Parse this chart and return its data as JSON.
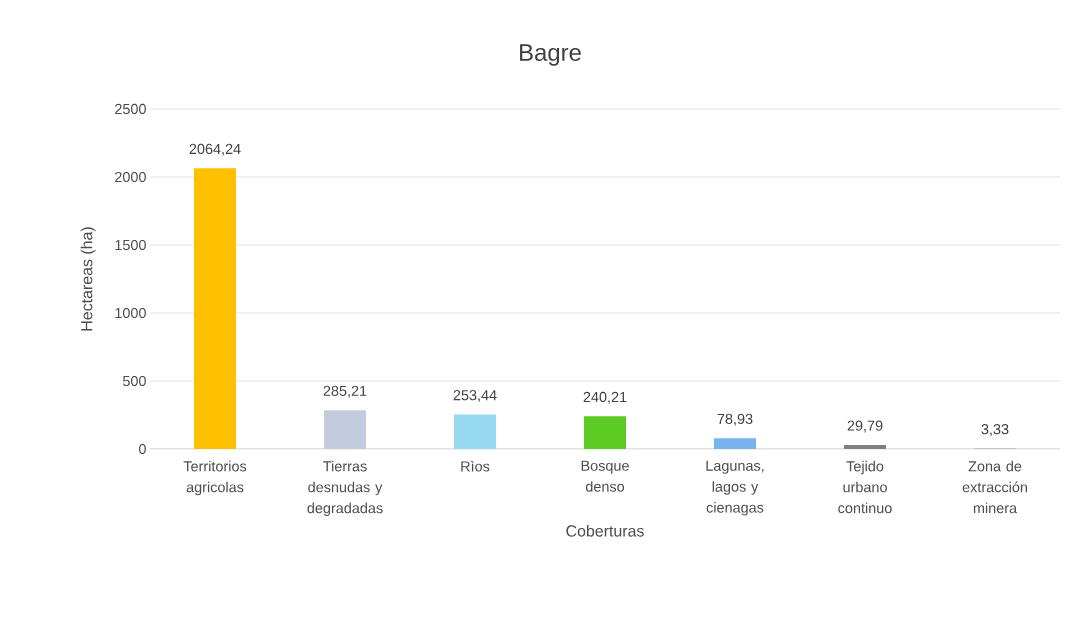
{
  "chart_data": {
    "type": "bar",
    "title": "Bagre",
    "xlabel": "Coberturas",
    "ylabel": "Hectareas (ha)",
    "categories": [
      "Territorios agricolas",
      "Tierras desnudas y degradadas",
      "Rìos",
      "Bosque denso",
      "Lagunas, lagos y cienagas",
      "Tejido urbano continuo",
      "Zona de extracción minera"
    ],
    "values": [
      2064.24,
      285.21,
      253.44,
      240.21,
      78.93,
      29.79,
      3.33
    ],
    "value_labels": [
      "2064,24",
      "285,21",
      "253,44",
      "240,21",
      "78,93",
      "29,79",
      "3,33"
    ],
    "colors": [
      "#ffc000",
      "#c3cbdf",
      "#97daf0",
      "#5ccb23",
      "#78b4ee",
      "#7f7f7f",
      "#a5a5a5"
    ],
    "ylim": [
      0,
      2500
    ],
    "yticks": [
      0,
      500,
      1000,
      1500,
      2000,
      2500
    ],
    "grid": "y"
  }
}
